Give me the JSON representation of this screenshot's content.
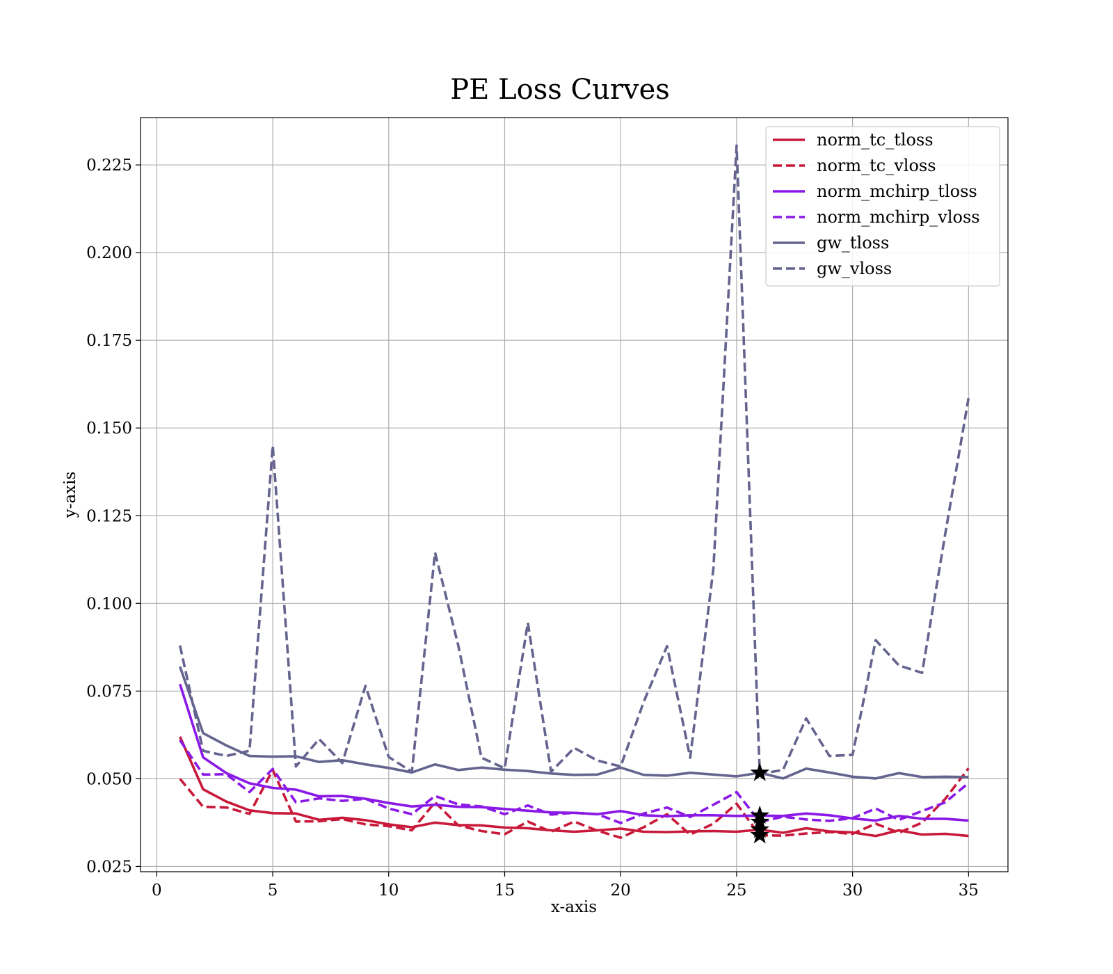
{
  "chart_data": {
    "type": "line",
    "title": "PE Loss Curves",
    "xlabel": "x-axis",
    "ylabel": "y-axis",
    "xlim": [
      -0.7,
      36.7
    ],
    "ylim": [
      0.0235,
      0.2385
    ],
    "xticks": [
      0,
      5,
      10,
      15,
      20,
      25,
      30,
      35
    ],
    "yticks": [
      0.025,
      0.05,
      0.075,
      0.1,
      0.125,
      0.15,
      0.175,
      0.2,
      0.225
    ],
    "xtick_labels": [
      "0",
      "5",
      "10",
      "15",
      "20",
      "25",
      "30",
      "35"
    ],
    "ytick_labels": [
      "0.025",
      "0.050",
      "0.075",
      "0.100",
      "0.125",
      "0.150",
      "0.175",
      "0.200",
      "0.225"
    ],
    "grid": true,
    "legend_position": "top-right",
    "x": [
      1,
      2,
      3,
      4,
      5,
      6,
      7,
      8,
      9,
      10,
      11,
      12,
      13,
      14,
      15,
      16,
      17,
      18,
      19,
      20,
      21,
      22,
      23,
      24,
      25,
      26,
      27,
      28,
      29,
      30,
      31,
      32,
      33,
      34,
      35
    ],
    "series": [
      {
        "name": "norm_tc_tloss",
        "color": "#c8193a",
        "dash": "solid",
        "values": [
          0.062,
          0.047,
          0.0435,
          0.041,
          0.0402,
          0.0401,
          0.0383,
          0.0389,
          0.0382,
          0.037,
          0.0362,
          0.0375,
          0.0368,
          0.0367,
          0.0361,
          0.0359,
          0.0353,
          0.0349,
          0.0353,
          0.0358,
          0.0349,
          0.0348,
          0.035,
          0.0351,
          0.0349,
          0.0355,
          0.0346,
          0.0359,
          0.035,
          0.0347,
          0.0337,
          0.0353,
          0.0341,
          0.0343,
          0.0337
        ]
      },
      {
        "name": "norm_tc_vloss",
        "color": "#c8193a",
        "dash": "dashed",
        "values": [
          0.05,
          0.042,
          0.0418,
          0.04,
          0.0525,
          0.0378,
          0.0379,
          0.0385,
          0.037,
          0.0365,
          0.0353,
          0.0433,
          0.0367,
          0.0351,
          0.0342,
          0.0378,
          0.0349,
          0.0378,
          0.0352,
          0.0332,
          0.0362,
          0.0399,
          0.0341,
          0.0372,
          0.0429,
          0.0339,
          0.0338,
          0.0344,
          0.0348,
          0.0343,
          0.0372,
          0.0346,
          0.0375,
          0.0443,
          0.053
        ]
      },
      {
        "name": "norm_mchirp_tloss",
        "color": "#8a19e6",
        "dash": "solid",
        "values": [
          0.077,
          0.0561,
          0.0516,
          0.0487,
          0.0474,
          0.0469,
          0.045,
          0.0451,
          0.0443,
          0.0431,
          0.0421,
          0.0426,
          0.042,
          0.0419,
          0.0414,
          0.0409,
          0.0404,
          0.0403,
          0.0399,
          0.0408,
          0.0396,
          0.0393,
          0.0396,
          0.0396,
          0.0394,
          0.0395,
          0.0394,
          0.0401,
          0.0396,
          0.0387,
          0.0381,
          0.0394,
          0.0386,
          0.0386,
          0.0381
        ]
      },
      {
        "name": "norm_mchirp_vloss",
        "color": "#8a19e6",
        "dash": "dashed",
        "values": [
          0.061,
          0.0512,
          0.0513,
          0.0462,
          0.0528,
          0.0433,
          0.0444,
          0.0437,
          0.0443,
          0.0415,
          0.0399,
          0.0451,
          0.0427,
          0.0421,
          0.0399,
          0.0424,
          0.0398,
          0.0403,
          0.0399,
          0.0374,
          0.0401,
          0.0418,
          0.0391,
          0.0426,
          0.0462,
          0.0377,
          0.0392,
          0.0384,
          0.038,
          0.0388,
          0.0415,
          0.0383,
          0.0408,
          0.0433,
          0.0488
        ]
      },
      {
        "name": "gw_tloss",
        "color": "#64648f",
        "dash": "solid",
        "values": [
          0.082,
          0.063,
          0.0595,
          0.0565,
          0.0563,
          0.0564,
          0.0548,
          0.0553,
          0.0541,
          0.0531,
          0.0518,
          0.0541,
          0.0525,
          0.0532,
          0.0526,
          0.0522,
          0.0515,
          0.0511,
          0.0512,
          0.0532,
          0.0511,
          0.0509,
          0.0517,
          0.0512,
          0.0507,
          0.0517,
          0.0501,
          0.0529,
          0.0518,
          0.0506,
          0.0501,
          0.0516,
          0.0505,
          0.0506,
          0.0505
        ]
      },
      {
        "name": "gw_vloss",
        "color": "#64648f",
        "dash": "dashed",
        "values": [
          0.088,
          0.058,
          0.0565,
          0.058,
          0.145,
          0.0535,
          0.0613,
          0.0545,
          0.0765,
          0.0562,
          0.052,
          0.1145,
          0.088,
          0.056,
          0.053,
          0.0945,
          0.052,
          0.0588,
          0.0552,
          0.0535,
          0.072,
          0.0878,
          0.056,
          0.11,
          0.2305,
          0.0514,
          0.0525,
          0.0672,
          0.0565,
          0.0568,
          0.0895,
          0.0823,
          0.0802,
          0.12,
          0.1585
        ]
      }
    ],
    "markers": {
      "shape": "star",
      "color": "#000000",
      "points": [
        {
          "x": 26,
          "y": 0.0517
        },
        {
          "x": 26,
          "y": 0.0395
        },
        {
          "x": 26,
          "y": 0.0377
        },
        {
          "x": 26,
          "y": 0.0355
        },
        {
          "x": 26,
          "y": 0.0339
        }
      ]
    }
  }
}
